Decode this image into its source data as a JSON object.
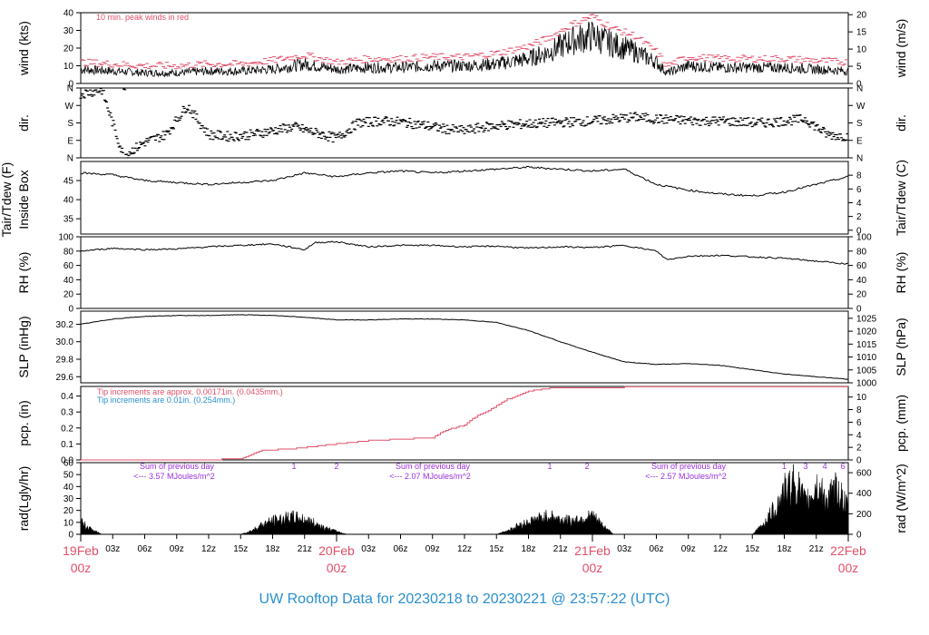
{
  "title": "UW Rooftop Data for 20230218  to  20230221 @ 23:57:22  (UTC)",
  "colors": {
    "data": "#000000",
    "peak": "#e0506a",
    "accent_red": "#e0506a",
    "blue": "#2a8fd0",
    "purple": "#9b30e0",
    "title": "#2a8fd0"
  },
  "x_axis": {
    "range_hours": [
      0,
      72
    ],
    "hour_ticks": [
      "03z",
      "06z",
      "09z",
      "12z",
      "15z",
      "18z",
      "21z",
      "03z",
      "06z",
      "09z",
      "12z",
      "15z",
      "18z",
      "21z",
      "03z",
      "06z",
      "09z",
      "12z",
      "15z",
      "18z",
      "21z"
    ],
    "hour_tick_values": [
      3,
      6,
      9,
      12,
      15,
      18,
      21,
      27,
      30,
      33,
      36,
      39,
      42,
      45,
      51,
      54,
      57,
      60,
      63,
      66,
      69
    ],
    "day_labels": [
      {
        "date": "19Feb",
        "time": "00z",
        "hour": 0
      },
      {
        "date": "20Feb",
        "time": "00z",
        "hour": 24
      },
      {
        "date": "21Feb",
        "time": "00z",
        "hour": 48
      },
      {
        "date": "22Feb",
        "time": "00z",
        "hour": 72
      }
    ]
  },
  "chart_data": [
    {
      "id": "wind",
      "type": "line",
      "ylabel": "wind (kts)",
      "ylabel_right": "wind (m/s)",
      "ylim": [
        0,
        40
      ],
      "left_ticks": [
        0,
        10,
        20,
        30,
        40
      ],
      "right_ticks": [
        0,
        5,
        10,
        15,
        20
      ],
      "right_factor": 0.5144,
      "annotation": "10 min. peak winds in red",
      "series": [
        {
          "role": "mean",
          "x": [
            0,
            3,
            6,
            9,
            12,
            15,
            18,
            21,
            24,
            27,
            30,
            33,
            36,
            39,
            42,
            44,
            46,
            48,
            50,
            52,
            54,
            55,
            57,
            60,
            63,
            66,
            69,
            72
          ],
          "y": [
            8,
            7,
            6,
            6,
            7,
            7,
            8,
            11,
            8,
            9,
            9,
            10,
            10,
            11,
            14,
            18,
            24,
            27,
            22,
            18,
            12,
            6,
            10,
            9,
            9,
            9,
            8,
            7
          ]
        },
        {
          "role": "peak",
          "x": [
            0,
            3,
            6,
            9,
            12,
            15,
            18,
            21,
            24,
            27,
            30,
            33,
            36,
            39,
            42,
            44,
            46,
            48,
            50,
            52,
            54,
            55,
            57,
            60,
            63,
            66,
            69,
            72
          ],
          "y": [
            12,
            11,
            10,
            10,
            11,
            11,
            13,
            16,
            12,
            14,
            14,
            15,
            15,
            17,
            21,
            26,
            33,
            38,
            31,
            27,
            18,
            10,
            15,
            14,
            14,
            14,
            13,
            12
          ]
        }
      ]
    },
    {
      "id": "dir",
      "type": "scatter",
      "ylabel": "dir.",
      "ylabel_right": "dir.",
      "ylim": [
        0,
        360
      ],
      "left_tick_labels": [
        "N",
        "E",
        "S",
        "W",
        "N"
      ],
      "right_tick_labels": [
        "N",
        "E",
        "S",
        "W",
        "N"
      ],
      "tick_values": [
        0,
        90,
        180,
        270,
        360
      ],
      "series": [
        {
          "x": [
            0,
            2,
            4,
            6,
            8,
            10,
            12,
            14,
            16,
            18,
            20,
            22,
            24,
            26,
            28,
            30,
            32,
            34,
            36,
            38,
            40,
            42,
            44,
            46,
            48,
            50,
            52,
            54,
            56,
            58,
            60,
            62,
            64,
            66,
            68,
            70,
            72
          ],
          "y": [
            330,
            350,
            10,
            80,
            120,
            270,
            120,
            110,
            120,
            140,
            160,
            130,
            100,
            180,
            190,
            185,
            170,
            150,
            140,
            160,
            170,
            175,
            180,
            185,
            190,
            200,
            210,
            200,
            195,
            190,
            190,
            185,
            180,
            190,
            200,
            120,
            110
          ]
        }
      ]
    },
    {
      "id": "temp",
      "type": "line",
      "ylabel": "Tair/Tdew (F)",
      "ylabel2": "Inside Box",
      "ylabel_right": "Tair/Tdew (C)",
      "ylim": [
        31,
        50
      ],
      "left_ticks": [
        35,
        40,
        45
      ],
      "right_ticks": [
        0,
        2,
        4,
        6,
        8
      ],
      "series": [
        {
          "x": [
            0,
            3,
            6,
            9,
            12,
            15,
            18,
            21,
            24,
            27,
            30,
            33,
            36,
            39,
            42,
            45,
            48,
            51,
            54,
            57,
            60,
            63,
            66,
            69,
            72
          ],
          "y": [
            47,
            46.5,
            45,
            44.5,
            44,
            44.5,
            45,
            47,
            46,
            47,
            47.5,
            47,
            47.5,
            48,
            48.5,
            48,
            47.5,
            48,
            44,
            42.5,
            41.5,
            41,
            42,
            44,
            46
          ]
        }
      ]
    },
    {
      "id": "rh",
      "type": "line",
      "ylabel": "RH (%)",
      "ylabel_right": "RH (%)",
      "ylim": [
        0,
        100
      ],
      "left_ticks": [
        0,
        20,
        40,
        60,
        80,
        100
      ],
      "right_ticks": [
        0,
        20,
        40,
        60,
        80,
        100
      ],
      "series": [
        {
          "x": [
            0,
            3,
            6,
            9,
            12,
            15,
            18,
            21,
            22,
            24,
            27,
            30,
            33,
            36,
            39,
            42,
            45,
            48,
            51,
            54,
            55,
            57,
            60,
            63,
            66,
            69,
            72
          ],
          "y": [
            80,
            84,
            82,
            83,
            86,
            88,
            90,
            82,
            92,
            93,
            86,
            88,
            88,
            86,
            87,
            84,
            86,
            85,
            88,
            80,
            68,
            73,
            74,
            72,
            70,
            66,
            62
          ]
        }
      ]
    },
    {
      "id": "slp",
      "type": "line",
      "ylabel": "SLP (inHg)",
      "ylabel_right": "SLP (hPa)",
      "ylim": [
        29.53,
        30.35
      ],
      "left_ticks": [
        29.6,
        29.8,
        30.0,
        30.2
      ],
      "right_ticks": [
        1000,
        1005,
        1010,
        1015,
        1020,
        1025
      ],
      "series": [
        {
          "x": [
            0,
            3,
            6,
            9,
            12,
            15,
            18,
            21,
            24,
            27,
            30,
            33,
            36,
            39,
            42,
            45,
            48,
            51,
            54,
            57,
            60,
            63,
            66,
            69,
            72
          ],
          "y": [
            30.2,
            30.26,
            30.29,
            30.3,
            30.3,
            30.31,
            30.3,
            30.28,
            30.25,
            30.25,
            30.26,
            30.26,
            30.25,
            30.22,
            30.13,
            30.0,
            29.88,
            29.77,
            29.74,
            29.75,
            29.73,
            29.68,
            29.63,
            29.6,
            29.57
          ]
        }
      ]
    },
    {
      "id": "pcp",
      "type": "line",
      "ylabel": "pcp. (in)",
      "ylabel_right": "pcp. (mm)",
      "ylim": [
        0,
        0.46
      ],
      "left_ticks": [
        0.0,
        0.1,
        0.2,
        0.3,
        0.4
      ],
      "right_ticks": [
        0,
        2,
        4,
        6,
        8,
        10
      ],
      "notes": [
        {
          "text": "Tip increments are approx. 0.00171in. (0.0435mm.)",
          "color": "accent_red"
        },
        {
          "text": "Tip increments are 0.01in. (0.254mm.)",
          "color": "blue"
        }
      ],
      "series": [
        {
          "x": [
            0,
            12,
            15,
            17,
            20,
            24,
            27,
            30,
            33,
            34,
            36,
            37,
            38,
            40,
            42,
            44,
            46,
            48,
            54,
            60,
            66,
            72
          ],
          "y": [
            0,
            0,
            0.01,
            0.06,
            0.07,
            0.1,
            0.12,
            0.13,
            0.14,
            0.18,
            0.22,
            0.27,
            0.3,
            0.38,
            0.43,
            0.45,
            0.45,
            0.45,
            0.46,
            0.46,
            0.46,
            0.46
          ]
        }
      ]
    },
    {
      "id": "rad",
      "type": "area",
      "ylabel": "rad(Lgly/hr)",
      "ylabel_right": "rad (W/m^2)",
      "ylim": [
        0,
        60
      ],
      "left_ticks": [
        0,
        10,
        20,
        30,
        40,
        50,
        60
      ],
      "right_ticks": [
        0,
        200,
        400,
        600
      ],
      "right_factor": 11.63,
      "markers": [
        {
          "label": "1",
          "hour": 20
        },
        {
          "label": "2",
          "hour": 24
        },
        {
          "label": "1",
          "hour": 44
        },
        {
          "label": "2",
          "hour": 47.5
        },
        {
          "label": "1",
          "hour": 66
        },
        {
          "label": "3",
          "hour": 68
        },
        {
          "label": "4",
          "hour": 69.8
        },
        {
          "label": "6",
          "hour": 71.5
        }
      ],
      "day_sums": [
        {
          "line1": "Sum of previous day",
          "line2": "<--- 3.57 MJoules/m^2",
          "hour": 8
        },
        {
          "line1": "Sum of previous day",
          "line2": "<--- 2.07 MJoules/m^2",
          "hour": 32
        },
        {
          "line1": "Sum of previous day",
          "line2": "<--- 2.57 MJoules/m^2",
          "hour": 56
        }
      ],
      "series": [
        {
          "x": [
            0,
            1,
            2,
            3,
            15,
            16,
            17,
            18,
            19,
            20,
            21,
            22,
            23,
            25,
            39,
            40,
            41,
            42,
            43,
            44,
            45,
            46,
            47,
            48,
            49,
            50,
            63,
            64,
            65,
            66,
            67,
            68,
            69,
            70,
            71,
            72
          ],
          "y": [
            10,
            4,
            0,
            0,
            0,
            3,
            8,
            11,
            13,
            14,
            12,
            9,
            5,
            0,
            0,
            3,
            7,
            10,
            13,
            15,
            12,
            11,
            13,
            15,
            7,
            0,
            0,
            8,
            20,
            35,
            44,
            25,
            40,
            28,
            38,
            20
          ]
        }
      ]
    }
  ]
}
